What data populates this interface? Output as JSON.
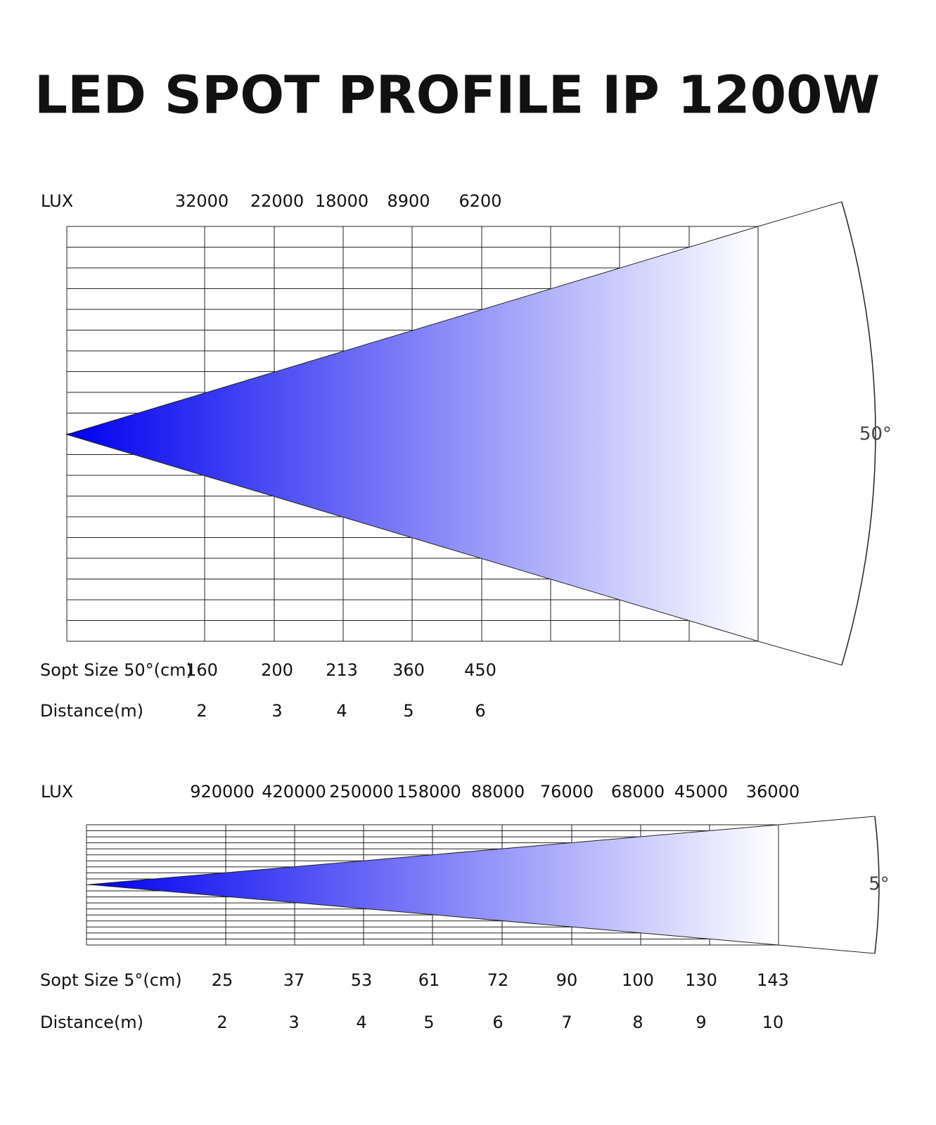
{
  "title": "LED SPOT PROFILE IP 1200W",
  "panels": [
    {
      "lux_label": "LUX",
      "lux": [
        "32000",
        "22000",
        "18000",
        "8900",
        "6200"
      ],
      "spot_label": "Sopt Size 50°(cm)",
      "spot": [
        "160",
        "200",
        "213",
        "360",
        "450"
      ],
      "distance_label": "Distance(m)",
      "distance": [
        "2",
        "3",
        "4",
        "5",
        "6"
      ],
      "angle": "50°"
    },
    {
      "lux_label": "LUX",
      "lux": [
        "920000",
        "420000",
        "250000",
        "158000",
        "88000",
        "76000",
        "68000",
        "45000",
        "36000"
      ],
      "spot_label": "Sopt Size 5°(cm)",
      "spot": [
        "25",
        "37",
        "53",
        "61",
        "72",
        "90",
        "100",
        "130",
        "143"
      ],
      "distance_label": "Distance(m)",
      "distance": [
        "2",
        "3",
        "4",
        "5",
        "6",
        "7",
        "8",
        "9",
        "10"
      ],
      "angle": "5°"
    }
  ]
}
